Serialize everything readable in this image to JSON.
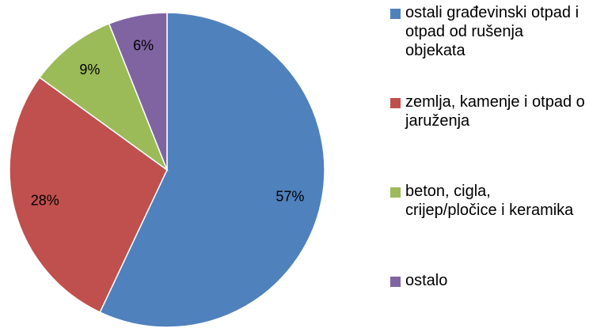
{
  "chart_data": {
    "type": "pie",
    "categories": [
      "ostali građevinski otpad i otpad od rušenja objekata",
      "zemlja, kamenje i otpad o jaruženja",
      "beton, cigla, crijep/pločice i keramika",
      "ostalo"
    ],
    "values": [
      57,
      28,
      9,
      6
    ],
    "value_labels": [
      "57%",
      "28%",
      "9%",
      "6%"
    ],
    "colors": [
      "#4f81bd",
      "#c0504d",
      "#9bbb59",
      "#8064a2"
    ],
    "legend": "right"
  }
}
